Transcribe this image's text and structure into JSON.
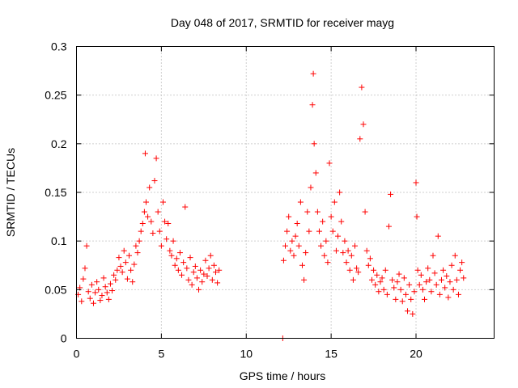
{
  "chart_data": {
    "type": "scatter",
    "title": "Day 048 of 2017, SRMTID for receiver mayg",
    "xlabel": "GPS time / hours",
    "ylabel": "SRMTID / TECUs",
    "xlim": [
      0,
      24.6
    ],
    "ylim": [
      0,
      0.3
    ],
    "xticks": [
      0,
      5,
      10,
      15,
      20
    ],
    "xtick_labels": [
      "0",
      "5",
      "10",
      "15",
      "20"
    ],
    "yticks": [
      0,
      0.05,
      0.1,
      0.15,
      0.2,
      0.25,
      0.3
    ],
    "ytick_labels": [
      "0",
      "0.05",
      "0.1",
      "0.15",
      "0.2",
      "0.25",
      "0.3"
    ],
    "grid": true,
    "marker": "plus",
    "marker_color": "#ff0000",
    "series": [
      {
        "name": "SRMTID",
        "points": [
          [
            0.1,
            0.045
          ],
          [
            0.2,
            0.052
          ],
          [
            0.3,
            0.038
          ],
          [
            0.4,
            0.061
          ],
          [
            0.5,
            0.072
          ],
          [
            0.6,
            0.095
          ],
          [
            0.7,
            0.048
          ],
          [
            0.8,
            0.041
          ],
          [
            0.9,
            0.055
          ],
          [
            1.0,
            0.036
          ],
          [
            1.1,
            0.047
          ],
          [
            1.2,
            0.058
          ],
          [
            1.3,
            0.05
          ],
          [
            1.4,
            0.039
          ],
          [
            1.5,
            0.044
          ],
          [
            1.6,
            0.062
          ],
          [
            1.7,
            0.053
          ],
          [
            1.8,
            0.047
          ],
          [
            1.9,
            0.04
          ],
          [
            2.0,
            0.056
          ],
          [
            2.1,
            0.049
          ],
          [
            2.2,
            0.065
          ],
          [
            2.3,
            0.06
          ],
          [
            2.4,
            0.07
          ],
          [
            2.5,
            0.083
          ],
          [
            2.6,
            0.074
          ],
          [
            2.7,
            0.068
          ],
          [
            2.8,
            0.09
          ],
          [
            2.9,
            0.078
          ],
          [
            3.0,
            0.061
          ],
          [
            3.1,
            0.085
          ],
          [
            3.2,
            0.07
          ],
          [
            3.3,
            0.058
          ],
          [
            3.4,
            0.076
          ],
          [
            3.5,
            0.095
          ],
          [
            3.6,
            0.088
          ],
          [
            3.7,
            0.1
          ],
          [
            3.8,
            0.11
          ],
          [
            3.9,
            0.118
          ],
          [
            4.0,
            0.13
          ],
          [
            4.05,
            0.19
          ],
          [
            4.1,
            0.14
          ],
          [
            4.2,
            0.125
          ],
          [
            4.3,
            0.155
          ],
          [
            4.4,
            0.12
          ],
          [
            4.5,
            0.108
          ],
          [
            4.6,
            0.162
          ],
          [
            4.7,
            0.185
          ],
          [
            4.8,
            0.13
          ],
          [
            4.9,
            0.11
          ],
          [
            5.0,
            0.095
          ],
          [
            5.1,
            0.14
          ],
          [
            5.2,
            0.12
          ],
          [
            5.3,
            0.102
          ],
          [
            5.4,
            0.118
          ],
          [
            5.5,
            0.09
          ],
          [
            5.6,
            0.085
          ],
          [
            5.7,
            0.1
          ],
          [
            5.8,
            0.075
          ],
          [
            5.9,
            0.082
          ],
          [
            6.0,
            0.07
          ],
          [
            6.1,
            0.088
          ],
          [
            6.2,
            0.065
          ],
          [
            6.3,
            0.078
          ],
          [
            6.4,
            0.135
          ],
          [
            6.5,
            0.072
          ],
          [
            6.6,
            0.06
          ],
          [
            6.7,
            0.083
          ],
          [
            6.8,
            0.055
          ],
          [
            6.9,
            0.068
          ],
          [
            7.0,
            0.074
          ],
          [
            7.1,
            0.062
          ],
          [
            7.2,
            0.05
          ],
          [
            7.3,
            0.07
          ],
          [
            7.4,
            0.058
          ],
          [
            7.5,
            0.066
          ],
          [
            7.6,
            0.08
          ],
          [
            7.7,
            0.064
          ],
          [
            7.8,
            0.072
          ],
          [
            7.9,
            0.085
          ],
          [
            8.0,
            0.06
          ],
          [
            8.1,
            0.075
          ],
          [
            8.2,
            0.068
          ],
          [
            8.3,
            0.057
          ],
          [
            8.4,
            0.07
          ],
          [
            12.15,
            0.0
          ],
          [
            12.2,
            0.08
          ],
          [
            12.3,
            0.095
          ],
          [
            12.4,
            0.11
          ],
          [
            12.5,
            0.125
          ],
          [
            12.6,
            0.09
          ],
          [
            12.7,
            0.1
          ],
          [
            12.8,
            0.085
          ],
          [
            12.9,
            0.105
          ],
          [
            13.0,
            0.118
          ],
          [
            13.1,
            0.095
          ],
          [
            13.2,
            0.14
          ],
          [
            13.3,
            0.075
          ],
          [
            13.4,
            0.06
          ],
          [
            13.5,
            0.088
          ],
          [
            13.6,
            0.13
          ],
          [
            13.7,
            0.11
          ],
          [
            13.8,
            0.155
          ],
          [
            13.9,
            0.24
          ],
          [
            13.95,
            0.272
          ],
          [
            14.0,
            0.2
          ],
          [
            14.1,
            0.17
          ],
          [
            14.2,
            0.13
          ],
          [
            14.3,
            0.11
          ],
          [
            14.4,
            0.095
          ],
          [
            14.5,
            0.12
          ],
          [
            14.6,
            0.085
          ],
          [
            14.7,
            0.1
          ],
          [
            14.8,
            0.078
          ],
          [
            14.9,
            0.18
          ],
          [
            15.0,
            0.125
          ],
          [
            15.1,
            0.11
          ],
          [
            15.2,
            0.14
          ],
          [
            15.3,
            0.09
          ],
          [
            15.4,
            0.105
          ],
          [
            15.5,
            0.15
          ],
          [
            15.6,
            0.12
          ],
          [
            15.7,
            0.088
          ],
          [
            15.8,
            0.1
          ],
          [
            15.9,
            0.078
          ],
          [
            16.0,
            0.09
          ],
          [
            16.1,
            0.07
          ],
          [
            16.2,
            0.085
          ],
          [
            16.3,
            0.06
          ],
          [
            16.4,
            0.095
          ],
          [
            16.5,
            0.072
          ],
          [
            16.6,
            0.068
          ],
          [
            16.7,
            0.205
          ],
          [
            16.8,
            0.258
          ],
          [
            16.9,
            0.22
          ],
          [
            17.0,
            0.13
          ],
          [
            17.1,
            0.09
          ],
          [
            17.2,
            0.075
          ],
          [
            17.3,
            0.082
          ],
          [
            17.4,
            0.06
          ],
          [
            17.5,
            0.07
          ],
          [
            17.6,
            0.055
          ],
          [
            17.7,
            0.065
          ],
          [
            17.8,
            0.048
          ],
          [
            17.9,
            0.058
          ],
          [
            18.0,
            0.062
          ],
          [
            18.1,
            0.05
          ],
          [
            18.2,
            0.07
          ],
          [
            18.3,
            0.045
          ],
          [
            18.4,
            0.115
          ],
          [
            18.5,
            0.148
          ],
          [
            18.6,
            0.06
          ],
          [
            18.7,
            0.052
          ],
          [
            18.8,
            0.04
          ],
          [
            18.9,
            0.058
          ],
          [
            19.0,
            0.066
          ],
          [
            19.1,
            0.05
          ],
          [
            19.2,
            0.038
          ],
          [
            19.3,
            0.062
          ],
          [
            19.4,
            0.045
          ],
          [
            19.5,
            0.028
          ],
          [
            19.6,
            0.055
          ],
          [
            19.7,
            0.04
          ],
          [
            19.8,
            0.025
          ],
          [
            19.9,
            0.048
          ],
          [
            20.0,
            0.16
          ],
          [
            20.05,
            0.125
          ],
          [
            20.1,
            0.07
          ],
          [
            20.2,
            0.055
          ],
          [
            20.3,
            0.065
          ],
          [
            20.4,
            0.05
          ],
          [
            20.5,
            0.04
          ],
          [
            20.6,
            0.058
          ],
          [
            20.7,
            0.072
          ],
          [
            20.8,
            0.06
          ],
          [
            20.9,
            0.048
          ],
          [
            21.0,
            0.085
          ],
          [
            21.1,
            0.067
          ],
          [
            21.2,
            0.055
          ],
          [
            21.3,
            0.105
          ],
          [
            21.4,
            0.045
          ],
          [
            21.5,
            0.06
          ],
          [
            21.6,
            0.07
          ],
          [
            21.7,
            0.052
          ],
          [
            21.8,
            0.064
          ],
          [
            21.9,
            0.042
          ],
          [
            22.0,
            0.058
          ],
          [
            22.1,
            0.075
          ],
          [
            22.2,
            0.05
          ],
          [
            22.3,
            0.085
          ],
          [
            22.4,
            0.06
          ],
          [
            22.5,
            0.045
          ],
          [
            22.6,
            0.07
          ],
          [
            22.7,
            0.078
          ],
          [
            22.8,
            0.062
          ]
        ]
      }
    ]
  }
}
